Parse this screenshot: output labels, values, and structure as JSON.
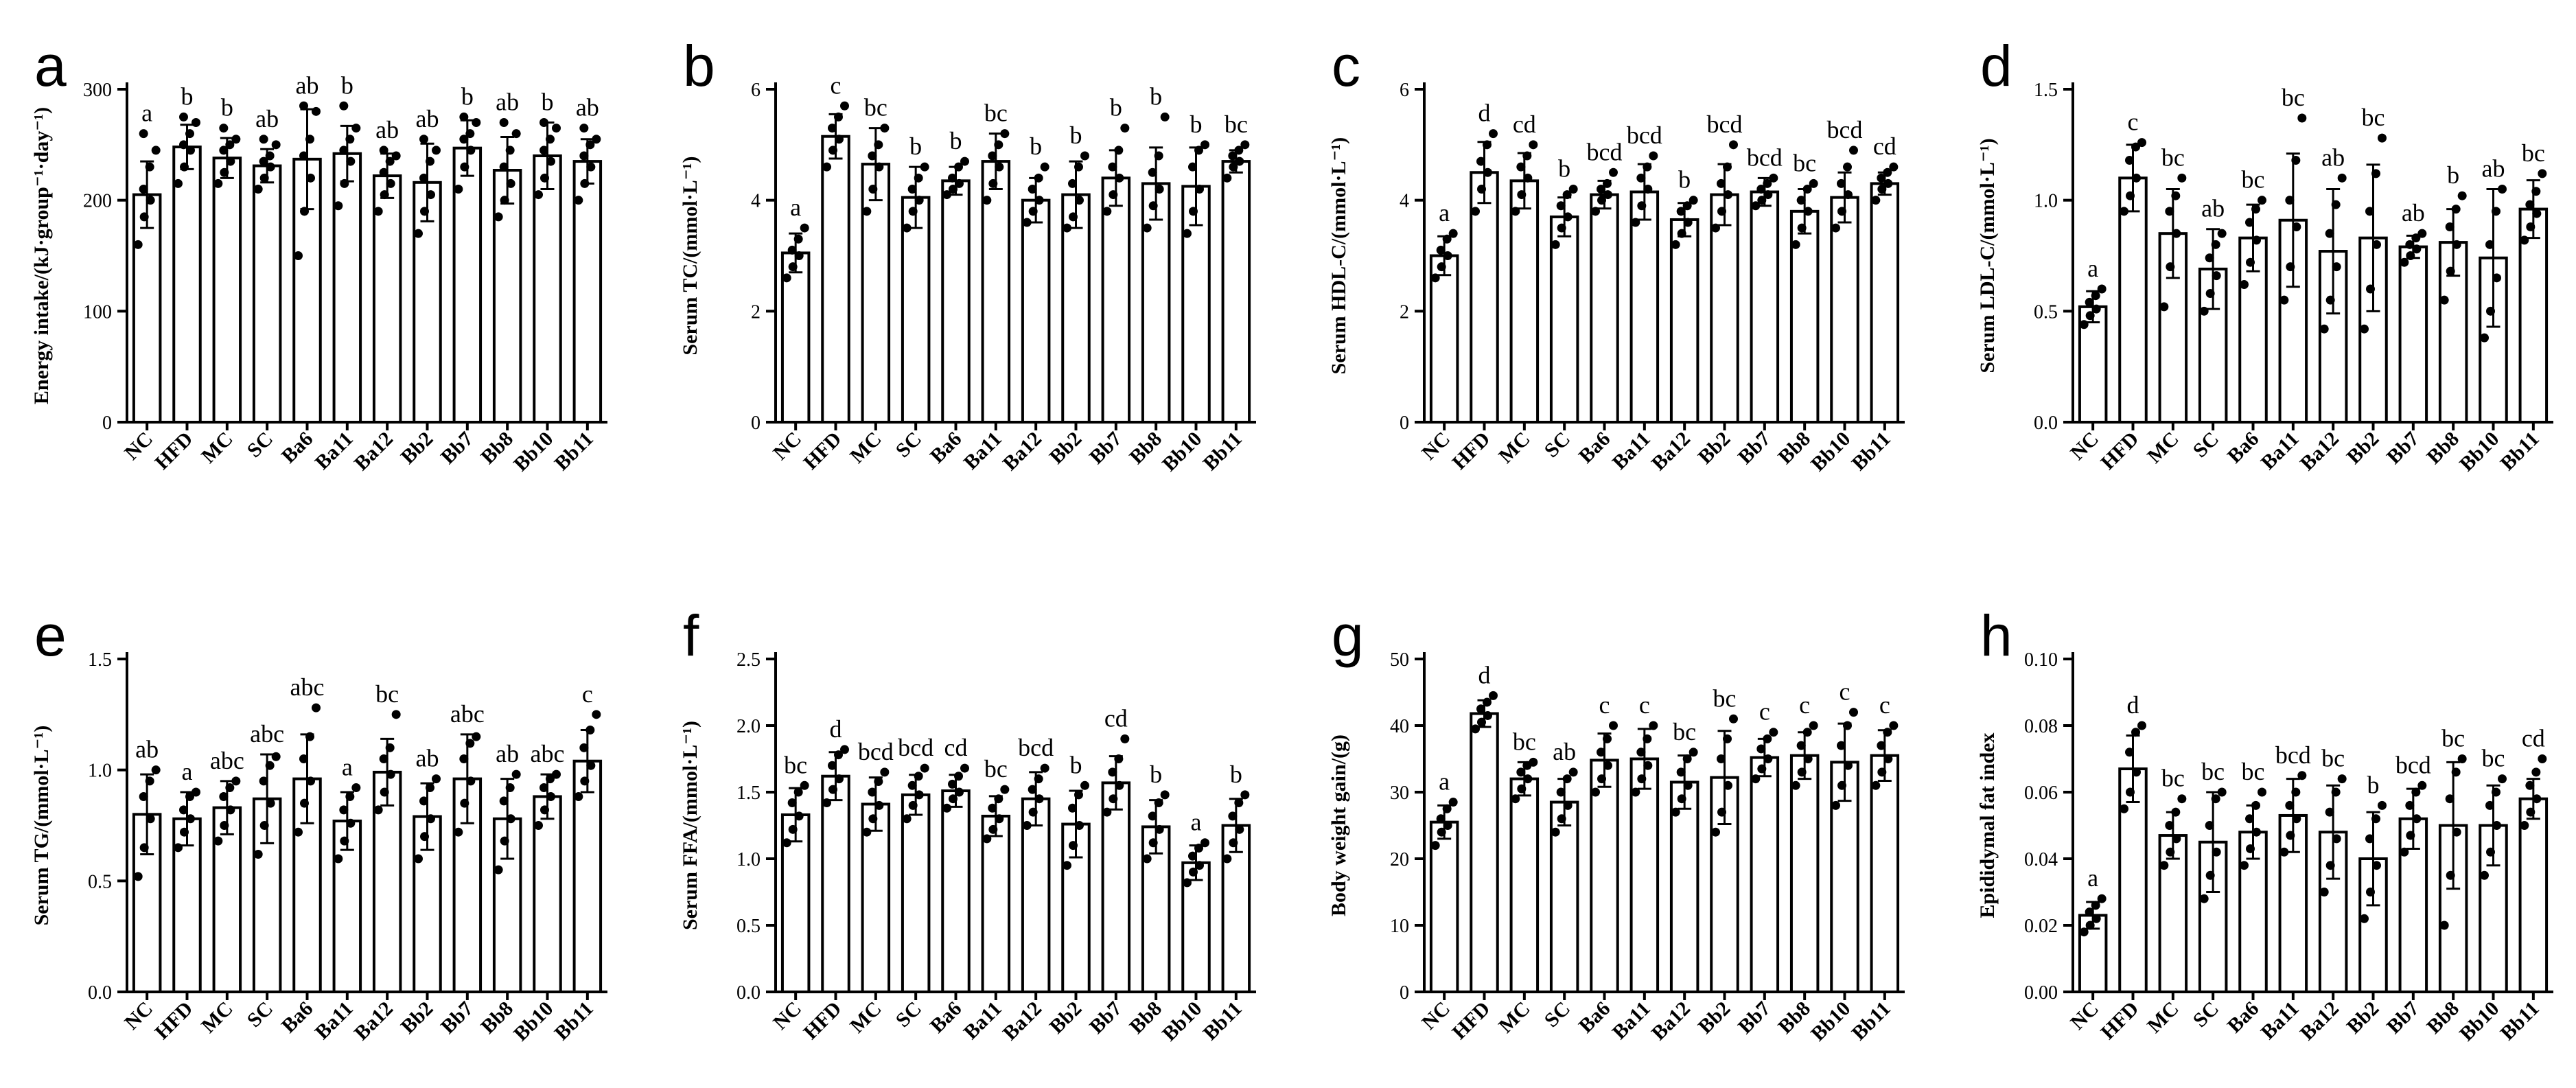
{
  "figure": {
    "categories": [
      "NC",
      "HFD",
      "MC",
      "SC",
      "Ba6",
      "Ba11",
      "Ba12",
      "Bb2",
      "Bb7",
      "Bb8",
      "Bb10",
      "Bb11"
    ]
  },
  "chart_data": [
    {
      "type": "bar",
      "panel": "a",
      "ylabel": "Energy intake/(kJ·group⁻¹·day⁻¹)",
      "ylim": [
        0,
        300
      ],
      "yticks": [
        "0",
        "100",
        "200",
        "300"
      ],
      "ytick_values": [
        0,
        100,
        200,
        300
      ],
      "values": [
        205,
        248,
        238,
        231,
        237,
        242,
        222,
        216,
        247,
        227,
        240,
        235
      ],
      "errors": [
        30,
        20,
        18,
        15,
        45,
        25,
        20,
        35,
        25,
        30,
        30,
        20
      ],
      "letters": [
        "a",
        "b",
        "b",
        "ab",
        "ab",
        "b",
        "ab",
        "ab",
        "b",
        "ab",
        "b",
        "ab"
      ],
      "points": [
        [
          160,
          185,
          200,
          210,
          230,
          245,
          260
        ],
        [
          215,
          230,
          245,
          250,
          260,
          270,
          275
        ],
        [
          215,
          225,
          235,
          245,
          250,
          255,
          265
        ],
        [
          210,
          220,
          230,
          235,
          240,
          250,
          255
        ],
        [
          150,
          190,
          220,
          240,
          255,
          280,
          285
        ],
        [
          195,
          215,
          235,
          245,
          255,
          265,
          285
        ],
        [
          190,
          205,
          215,
          225,
          235,
          240,
          245
        ],
        [
          170,
          190,
          205,
          220,
          235,
          245,
          255
        ],
        [
          210,
          230,
          245,
          255,
          260,
          270,
          275
        ],
        [
          185,
          200,
          215,
          230,
          245,
          260,
          270
        ],
        [
          205,
          220,
          235,
          245,
          255,
          265,
          270
        ],
        [
          200,
          215,
          230,
          240,
          250,
          255,
          265
        ]
      ]
    },
    {
      "type": "bar",
      "panel": "b",
      "ylabel": "Serum TC/(mmol·L⁻¹)",
      "ylim": [
        0,
        6
      ],
      "yticks": [
        "0",
        "2",
        "4",
        "6"
      ],
      "ytick_values": [
        0,
        2,
        4,
        6
      ],
      "values": [
        3.05,
        5.15,
        4.65,
        4.05,
        4.35,
        4.7,
        4.0,
        4.1,
        4.4,
        4.3,
        4.25,
        4.7
      ],
      "errors": [
        0.35,
        0.4,
        0.65,
        0.55,
        0.25,
        0.5,
        0.4,
        0.6,
        0.5,
        0.65,
        0.7,
        0.2
      ],
      "letters": [
        "a",
        "c",
        "bc",
        "b",
        "b",
        "bc",
        "b",
        "b",
        "b",
        "b",
        "b",
        "bc"
      ],
      "points": [
        [
          2.6,
          2.8,
          3.0,
          3.1,
          3.3,
          3.5
        ],
        [
          4.6,
          4.9,
          5.1,
          5.3,
          5.5,
          5.7
        ],
        [
          3.8,
          4.2,
          4.6,
          4.8,
          5.0,
          5.3
        ],
        [
          3.5,
          3.8,
          4.0,
          4.2,
          4.4,
          4.6
        ],
        [
          4.1,
          4.2,
          4.3,
          4.4,
          4.6,
          4.7
        ],
        [
          4.0,
          4.3,
          4.6,
          4.8,
          5.0,
          5.2
        ],
        [
          3.6,
          3.8,
          4.0,
          4.2,
          4.4,
          4.6
        ],
        [
          3.5,
          3.7,
          4.0,
          4.3,
          4.6,
          4.8
        ],
        [
          3.8,
          4.1,
          4.4,
          4.6,
          4.9,
          5.3
        ],
        [
          3.5,
          3.9,
          4.2,
          4.5,
          4.8,
          5.5
        ],
        [
          3.4,
          3.8,
          4.2,
          4.6,
          4.9,
          5.0
        ],
        [
          4.4,
          4.6,
          4.7,
          4.8,
          4.9,
          5.0
        ]
      ]
    },
    {
      "type": "bar",
      "panel": "c",
      "ylabel": "Serum HDL-C/(mmol·L⁻¹)",
      "ylim": [
        0,
        6
      ],
      "yticks": [
        "0",
        "2",
        "4",
        "6"
      ],
      "ytick_values": [
        0,
        2,
        4,
        6
      ],
      "values": [
        3.0,
        4.5,
        4.35,
        3.7,
        4.1,
        4.15,
        3.65,
        4.1,
        4.15,
        3.8,
        4.05,
        4.3
      ],
      "errors": [
        0.35,
        0.55,
        0.5,
        0.35,
        0.25,
        0.5,
        0.3,
        0.55,
        0.25,
        0.4,
        0.45,
        0.2
      ],
      "letters": [
        "a",
        "d",
        "cd",
        "b",
        "bcd",
        "bcd",
        "b",
        "bcd",
        "bcd",
        "bc",
        "bcd",
        "cd"
      ],
      "points": [
        [
          2.6,
          2.8,
          3.0,
          3.1,
          3.3,
          3.4
        ],
        [
          3.8,
          4.2,
          4.5,
          4.7,
          5.0,
          5.2
        ],
        [
          3.8,
          4.1,
          4.4,
          4.6,
          4.8,
          5.0
        ],
        [
          3.2,
          3.5,
          3.7,
          3.9,
          4.1,
          4.2
        ],
        [
          3.8,
          4.0,
          4.1,
          4.2,
          4.3,
          4.5
        ],
        [
          3.6,
          3.9,
          4.2,
          4.4,
          4.6,
          4.8
        ],
        [
          3.2,
          3.4,
          3.6,
          3.8,
          3.9,
          4.0
        ],
        [
          3.5,
          3.8,
          4.1,
          4.3,
          4.6,
          5.0
        ],
        [
          3.9,
          4.0,
          4.1,
          4.2,
          4.3,
          4.4
        ],
        [
          3.2,
          3.5,
          3.8,
          4.0,
          4.2,
          4.3
        ],
        [
          3.5,
          3.8,
          4.1,
          4.3,
          4.6,
          4.9
        ],
        [
          4.0,
          4.2,
          4.3,
          4.4,
          4.5,
          4.6
        ]
      ]
    },
    {
      "type": "bar",
      "panel": "d",
      "ylabel": "Serum LDL-C/(mmol·L⁻¹)",
      "ylim": [
        0,
        1.5
      ],
      "yticks": [
        "0.0",
        "0.5",
        "1.0",
        "1.5"
      ],
      "ytick_values": [
        0,
        0.5,
        1.0,
        1.5
      ],
      "values": [
        0.52,
        1.1,
        0.85,
        0.69,
        0.83,
        0.91,
        0.77,
        0.83,
        0.79,
        0.81,
        0.74,
        0.96
      ],
      "errors": [
        0.07,
        0.15,
        0.2,
        0.18,
        0.15,
        0.3,
        0.28,
        0.33,
        0.05,
        0.15,
        0.31,
        0.13
      ],
      "letters": [
        "a",
        "c",
        "bc",
        "ab",
        "bc",
        "bc",
        "ab",
        "bc",
        "ab",
        "b",
        "ab",
        "bc"
      ],
      "points": [
        [
          0.44,
          0.48,
          0.51,
          0.54,
          0.57,
          0.6
        ],
        [
          0.95,
          1.02,
          1.1,
          1.18,
          1.24,
          1.26
        ],
        [
          0.52,
          0.7,
          0.85,
          0.95,
          1.02,
          1.1
        ],
        [
          0.5,
          0.58,
          0.66,
          0.74,
          0.8,
          0.85
        ],
        [
          0.62,
          0.72,
          0.82,
          0.9,
          0.96,
          1.0
        ],
        [
          0.55,
          0.7,
          0.88,
          1.0,
          1.18,
          1.37
        ],
        [
          0.42,
          0.55,
          0.7,
          0.85,
          0.98,
          1.1
        ],
        [
          0.42,
          0.6,
          0.8,
          0.95,
          1.12,
          1.28
        ],
        [
          0.72,
          0.75,
          0.78,
          0.8,
          0.83,
          0.85
        ],
        [
          0.55,
          0.68,
          0.8,
          0.88,
          0.96,
          1.02
        ],
        [
          0.38,
          0.5,
          0.65,
          0.8,
          0.95,
          1.05
        ],
        [
          0.82,
          0.88,
          0.94,
          0.98,
          1.04,
          1.12
        ]
      ]
    },
    {
      "type": "bar",
      "panel": "e",
      "ylabel": "Serum TG/(mmol·L⁻¹)",
      "ylim": [
        0,
        1.5
      ],
      "yticks": [
        "0.0",
        "0.5",
        "1.0",
        "1.5"
      ],
      "ytick_values": [
        0,
        0.5,
        1.0,
        1.5
      ],
      "values": [
        0.8,
        0.78,
        0.83,
        0.87,
        0.96,
        0.77,
        0.99,
        0.79,
        0.96,
        0.78,
        0.88,
        1.04
      ],
      "errors": [
        0.18,
        0.12,
        0.12,
        0.2,
        0.2,
        0.13,
        0.15,
        0.15,
        0.2,
        0.18,
        0.1,
        0.14
      ],
      "letters": [
        "ab",
        "a",
        "abc",
        "abc",
        "abc",
        "a",
        "bc",
        "ab",
        "abc",
        "ab",
        "abc",
        "c"
      ],
      "points": [
        [
          0.52,
          0.65,
          0.78,
          0.88,
          0.95,
          1.0
        ],
        [
          0.65,
          0.72,
          0.78,
          0.82,
          0.88,
          0.9
        ],
        [
          0.68,
          0.75,
          0.82,
          0.88,
          0.92,
          0.95
        ],
        [
          0.62,
          0.75,
          0.85,
          0.95,
          1.02,
          1.06
        ],
        [
          0.72,
          0.85,
          0.95,
          1.05,
          1.15,
          1.28
        ],
        [
          0.6,
          0.68,
          0.76,
          0.82,
          0.88,
          0.92
        ],
        [
          0.82,
          0.9,
          0.98,
          1.05,
          1.1,
          1.25
        ],
        [
          0.6,
          0.7,
          0.78,
          0.86,
          0.92,
          0.96
        ],
        [
          0.72,
          0.85,
          0.95,
          1.05,
          1.12,
          1.15
        ],
        [
          0.55,
          0.68,
          0.78,
          0.86,
          0.92,
          0.98
        ],
        [
          0.75,
          0.82,
          0.88,
          0.92,
          0.96,
          0.98
        ],
        [
          0.88,
          0.95,
          1.02,
          1.1,
          1.18,
          1.25
        ]
      ]
    },
    {
      "type": "bar",
      "panel": "f",
      "ylabel": "Serum FFA/(mmol·L⁻¹)",
      "ylim": [
        0,
        2.5
      ],
      "yticks": [
        "0.0",
        "0.5",
        "1.0",
        "1.5",
        "2.0",
        "2.5"
      ],
      "ytick_values": [
        0,
        0.5,
        1.0,
        1.5,
        2.0,
        2.5
      ],
      "values": [
        1.33,
        1.62,
        1.41,
        1.48,
        1.51,
        1.32,
        1.45,
        1.26,
        1.57,
        1.24,
        0.97,
        1.25
      ],
      "errors": [
        0.2,
        0.18,
        0.2,
        0.15,
        0.12,
        0.15,
        0.2,
        0.25,
        0.2,
        0.2,
        0.13,
        0.2
      ],
      "letters": [
        "bc",
        "d",
        "bcd",
        "bcd",
        "cd",
        "bc",
        "bcd",
        "b",
        "cd",
        "b",
        "a",
        "b"
      ],
      "points": [
        [
          1.12,
          1.22,
          1.32,
          1.42,
          1.5,
          1.55
        ],
        [
          1.42,
          1.52,
          1.6,
          1.7,
          1.78,
          1.82
        ],
        [
          1.2,
          1.3,
          1.4,
          1.5,
          1.58,
          1.65
        ],
        [
          1.3,
          1.4,
          1.48,
          1.55,
          1.62,
          1.68
        ],
        [
          1.38,
          1.45,
          1.5,
          1.56,
          1.62,
          1.68
        ],
        [
          1.15,
          1.22,
          1.3,
          1.38,
          1.45,
          1.52
        ],
        [
          1.25,
          1.35,
          1.45,
          1.52,
          1.6,
          1.68
        ],
        [
          0.95,
          1.1,
          1.25,
          1.38,
          1.48,
          1.55
        ],
        [
          1.35,
          1.45,
          1.55,
          1.65,
          1.75,
          1.9
        ],
        [
          1.0,
          1.12,
          1.22,
          1.32,
          1.42,
          1.48
        ],
        [
          0.82,
          0.9,
          0.95,
          1.02,
          1.08,
          1.12
        ],
        [
          1.0,
          1.12,
          1.22,
          1.32,
          1.42,
          1.48
        ]
      ]
    },
    {
      "type": "bar",
      "panel": "g",
      "ylabel": "Body weight gain/(g)",
      "ylim": [
        0,
        50
      ],
      "yticks": [
        "0",
        "10",
        "20",
        "30",
        "40",
        "50"
      ],
      "ytick_values": [
        0,
        10,
        20,
        30,
        40,
        50
      ],
      "values": [
        25.5,
        41.8,
        32.0,
        28.5,
        34.8,
        35.0,
        31.5,
        32.2,
        35.2,
        35.5,
        34.5,
        35.5
      ],
      "errors": [
        2.5,
        2.0,
        2.5,
        3.5,
        4.0,
        4.5,
        4.0,
        7.0,
        2.8,
        3.5,
        5.8,
        3.8
      ],
      "letters": [
        "a",
        "d",
        "bc",
        "ab",
        "c",
        "c",
        "bc",
        "bc",
        "c",
        "c",
        "c",
        "c"
      ],
      "points": [
        [
          22,
          24,
          25,
          26,
          27.5,
          28.5
        ],
        [
          39.5,
          40.5,
          41.5,
          42.5,
          43.5,
          44.5
        ],
        [
          29,
          30.5,
          32,
          33,
          34,
          34.5
        ],
        [
          24,
          26,
          28,
          30,
          32,
          33
        ],
        [
          30,
          32,
          34,
          36,
          38,
          40
        ],
        [
          30,
          32,
          34,
          36,
          38,
          40
        ],
        [
          27,
          29,
          31,
          33,
          35,
          36
        ],
        [
          24,
          27,
          31,
          35,
          38,
          41
        ],
        [
          32,
          33.5,
          35,
          36.5,
          38,
          39
        ],
        [
          31,
          33,
          35,
          37,
          39,
          40
        ],
        [
          28,
          31,
          34,
          37,
          40,
          42
        ],
        [
          31,
          33,
          35,
          37,
          39,
          40
        ]
      ]
    },
    {
      "type": "bar",
      "panel": "h",
      "ylabel": "Epididymal fat index",
      "ylim": [
        0,
        0.1
      ],
      "yticks": [
        "0.00",
        "0.02",
        "0.04",
        "0.06",
        "0.08",
        "0.10"
      ],
      "ytick_values": [
        0,
        0.02,
        0.04,
        0.06,
        0.08,
        0.1
      ],
      "values": [
        0.023,
        0.067,
        0.047,
        0.045,
        0.048,
        0.053,
        0.048,
        0.04,
        0.052,
        0.05,
        0.05,
        0.058
      ],
      "errors": [
        0.004,
        0.01,
        0.007,
        0.015,
        0.008,
        0.011,
        0.014,
        0.014,
        0.009,
        0.019,
        0.012,
        0.006
      ],
      "letters": [
        "a",
        "d",
        "bc",
        "bc",
        "bc",
        "bcd",
        "bc",
        "b",
        "bcd",
        "bc",
        "bc",
        "cd"
      ],
      "points": [
        [
          0.018,
          0.02,
          0.022,
          0.024,
          0.026,
          0.028
        ],
        [
          0.055,
          0.06,
          0.066,
          0.072,
          0.078,
          0.08
        ],
        [
          0.038,
          0.042,
          0.046,
          0.05,
          0.054,
          0.058
        ],
        [
          0.028,
          0.035,
          0.042,
          0.05,
          0.058,
          0.06
        ],
        [
          0.038,
          0.043,
          0.048,
          0.052,
          0.056,
          0.06
        ],
        [
          0.042,
          0.047,
          0.052,
          0.056,
          0.06,
          0.065
        ],
        [
          0.03,
          0.038,
          0.046,
          0.054,
          0.06,
          0.064
        ],
        [
          0.022,
          0.03,
          0.038,
          0.046,
          0.052,
          0.056
        ],
        [
          0.042,
          0.047,
          0.052,
          0.056,
          0.06,
          0.062
        ],
        [
          0.02,
          0.035,
          0.048,
          0.058,
          0.066,
          0.07
        ],
        [
          0.035,
          0.042,
          0.05,
          0.056,
          0.06,
          0.064
        ],
        [
          0.05,
          0.054,
          0.058,
          0.062,
          0.066,
          0.07
        ]
      ]
    }
  ]
}
